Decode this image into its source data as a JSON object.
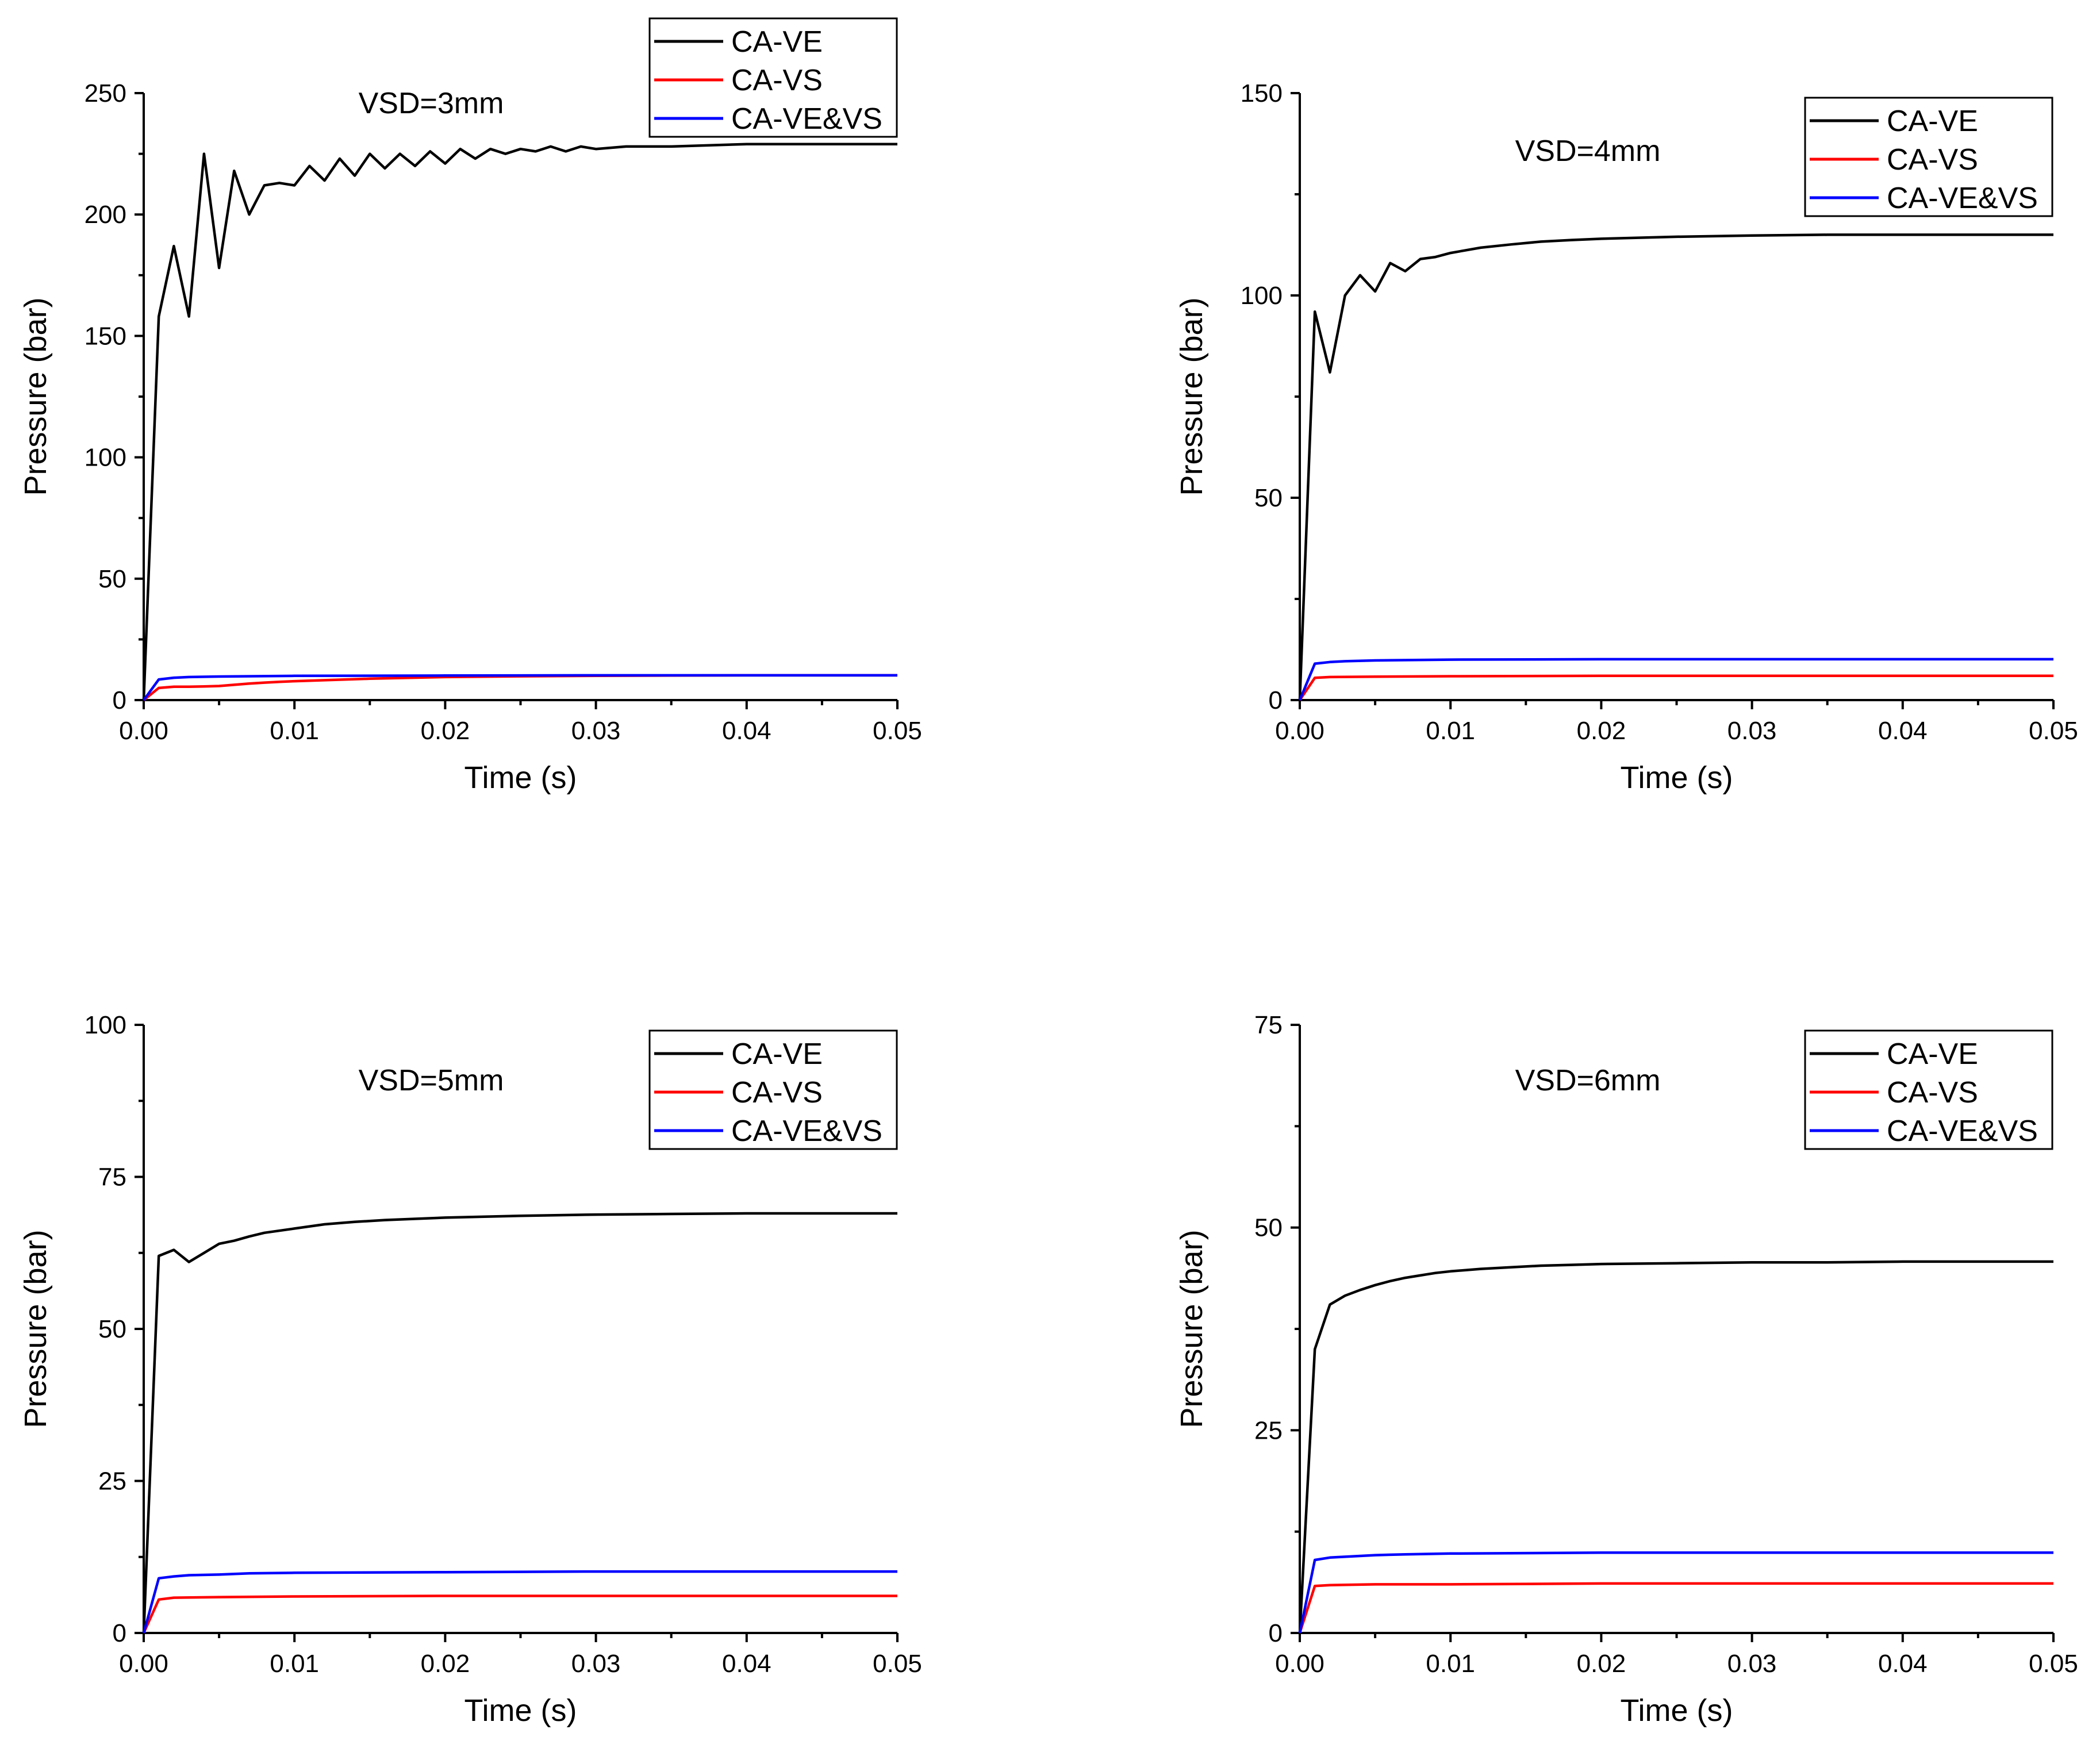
{
  "chart_data": [
    {
      "type": "line",
      "annotation": "VSD=3mm",
      "xlabel": "Time (s)",
      "ylabel": "Pressure (bar)",
      "xlim": [
        0,
        0.05
      ],
      "ylim": [
        0,
        250
      ],
      "xticks": [
        "0.00",
        "0.01",
        "0.02",
        "0.03",
        "0.04",
        "0.05"
      ],
      "yticks": [
        "0",
        "50",
        "100",
        "150",
        "200",
        "250"
      ],
      "legend_position": "top-right",
      "series": [
        {
          "name": "CA-VE",
          "color": "#000000",
          "x": [
            0,
            0.001,
            0.002,
            0.003,
            0.004,
            0.005,
            0.006,
            0.007,
            0.008,
            0.009,
            0.01,
            0.011,
            0.012,
            0.013,
            0.014,
            0.015,
            0.016,
            0.017,
            0.018,
            0.019,
            0.02,
            0.021,
            0.022,
            0.023,
            0.024,
            0.025,
            0.026,
            0.027,
            0.028,
            0.029,
            0.03,
            0.032,
            0.035,
            0.04,
            0.045,
            0.05
          ],
          "y": [
            0,
            158,
            187,
            158,
            225,
            178,
            218,
            200,
            212,
            213,
            212,
            220,
            214,
            223,
            216,
            225,
            219,
            225,
            220,
            226,
            221,
            227,
            223,
            227,
            225,
            227,
            226,
            228,
            226,
            228,
            227,
            228,
            228,
            229,
            229,
            229
          ]
        },
        {
          "name": "CA-VS",
          "color": "#ff0000",
          "x": [
            0,
            0.001,
            0.002,
            0.003,
            0.004,
            0.005,
            0.006,
            0.007,
            0.008,
            0.009,
            0.01,
            0.012,
            0.015,
            0.02,
            0.025,
            0.03,
            0.035,
            0.04,
            0.045,
            0.05
          ],
          "y": [
            0,
            5,
            5.5,
            5.5,
            5.6,
            5.8,
            6.3,
            6.8,
            7.2,
            7.5,
            7.8,
            8.2,
            8.8,
            9.5,
            9.8,
            10,
            10.1,
            10.2,
            10.2,
            10.2
          ]
        },
        {
          "name": "CA-VE&VS",
          "color": "#0000ff",
          "x": [
            0,
            0.001,
            0.002,
            0.003,
            0.005,
            0.01,
            0.02,
            0.03,
            0.04,
            0.05
          ],
          "y": [
            0,
            8.5,
            9.2,
            9.5,
            9.7,
            10,
            10.1,
            10.2,
            10.2,
            10.2
          ]
        }
      ]
    },
    {
      "type": "line",
      "annotation": "VSD=4mm",
      "xlabel": "Time (s)",
      "ylabel": "Pressure (bar)",
      "xlim": [
        0,
        0.05
      ],
      "ylim": [
        0,
        150
      ],
      "xticks": [
        "0.00",
        "0.01",
        "0.02",
        "0.03",
        "0.04",
        "0.05"
      ],
      "yticks": [
        "0",
        "50",
        "100",
        "150"
      ],
      "legend_position": "top-right",
      "series": [
        {
          "name": "CA-VE",
          "color": "#000000",
          "x": [
            0,
            0.001,
            0.002,
            0.003,
            0.004,
            0.005,
            0.006,
            0.007,
            0.008,
            0.009,
            0.01,
            0.012,
            0.014,
            0.016,
            0.018,
            0.02,
            0.025,
            0.03,
            0.035,
            0.04,
            0.045,
            0.05
          ],
          "y": [
            0,
            96,
            81,
            100,
            105,
            101,
            108,
            106,
            109,
            109.5,
            110.5,
            111.8,
            112.6,
            113.3,
            113.7,
            114,
            114.5,
            114.8,
            115,
            115,
            115,
            115
          ]
        },
        {
          "name": "CA-VS",
          "color": "#ff0000",
          "x": [
            0,
            0.001,
            0.002,
            0.005,
            0.01,
            0.02,
            0.03,
            0.04,
            0.05
          ],
          "y": [
            0,
            5.5,
            5.7,
            5.8,
            5.9,
            6,
            6,
            6,
            6
          ]
        },
        {
          "name": "CA-VE&VS",
          "color": "#0000ff",
          "x": [
            0,
            0.001,
            0.002,
            0.003,
            0.005,
            0.01,
            0.02,
            0.03,
            0.04,
            0.05
          ],
          "y": [
            0,
            9,
            9.4,
            9.6,
            9.8,
            10,
            10.1,
            10.1,
            10.1,
            10.1
          ]
        }
      ]
    },
    {
      "type": "line",
      "annotation": "VSD=5mm",
      "xlabel": "Time (s)",
      "ylabel": "Pressure (bar)",
      "xlim": [
        0,
        0.05
      ],
      "ylim": [
        0,
        100
      ],
      "xticks": [
        "0.00",
        "0.01",
        "0.02",
        "0.03",
        "0.04",
        "0.05"
      ],
      "yticks": [
        "0",
        "25",
        "50",
        "75",
        "100"
      ],
      "legend_position": "top-right",
      "series": [
        {
          "name": "CA-VE",
          "color": "#000000",
          "x": [
            0,
            0.001,
            0.002,
            0.003,
            0.004,
            0.005,
            0.006,
            0.007,
            0.008,
            0.01,
            0.012,
            0.014,
            0.016,
            0.018,
            0.02,
            0.025,
            0.03,
            0.035,
            0.04,
            0.045,
            0.05
          ],
          "y": [
            0,
            62,
            63,
            61,
            62.5,
            64,
            64.5,
            65.2,
            65.8,
            66.5,
            67.2,
            67.6,
            67.9,
            68.1,
            68.3,
            68.6,
            68.8,
            68.9,
            69,
            69,
            69
          ]
        },
        {
          "name": "CA-VS",
          "color": "#ff0000",
          "x": [
            0,
            0.001,
            0.002,
            0.005,
            0.01,
            0.02,
            0.03,
            0.04,
            0.05
          ],
          "y": [
            0,
            5.5,
            5.8,
            5.9,
            6,
            6.1,
            6.1,
            6.1,
            6.1
          ]
        },
        {
          "name": "CA-VE&VS",
          "color": "#0000ff",
          "x": [
            0,
            0.001,
            0.002,
            0.003,
            0.005,
            0.007,
            0.01,
            0.02,
            0.03,
            0.04,
            0.05
          ],
          "y": [
            0,
            9,
            9.3,
            9.5,
            9.6,
            9.8,
            9.9,
            10,
            10.1,
            10.1,
            10.1
          ]
        }
      ]
    },
    {
      "type": "line",
      "annotation": "VSD=6mm",
      "xlabel": "Time (s)",
      "ylabel": "Pressure (bar)",
      "xlim": [
        0,
        0.05
      ],
      "ylim": [
        0,
        75
      ],
      "xticks": [
        "0.00",
        "0.01",
        "0.02",
        "0.03",
        "0.04",
        "0.05"
      ],
      "yticks": [
        "0",
        "25",
        "50",
        "75"
      ],
      "legend_position": "top-right",
      "series": [
        {
          "name": "CA-VE",
          "color": "#000000",
          "x": [
            0,
            0.001,
            0.002,
            0.003,
            0.004,
            0.005,
            0.006,
            0.007,
            0.008,
            0.009,
            0.01,
            0.012,
            0.014,
            0.016,
            0.018,
            0.02,
            0.025,
            0.03,
            0.035,
            0.04,
            0.045,
            0.05
          ],
          "y": [
            0,
            35,
            40.5,
            41.6,
            42.3,
            42.9,
            43.4,
            43.8,
            44.1,
            44.4,
            44.6,
            44.9,
            45.1,
            45.3,
            45.4,
            45.5,
            45.6,
            45.7,
            45.7,
            45.8,
            45.8,
            45.8
          ]
        },
        {
          "name": "CA-VS",
          "color": "#ff0000",
          "x": [
            0,
            0.001,
            0.002,
            0.005,
            0.01,
            0.02,
            0.03,
            0.04,
            0.05
          ],
          "y": [
            0,
            5.8,
            5.9,
            6,
            6,
            6.1,
            6.1,
            6.1,
            6.1
          ]
        },
        {
          "name": "CA-VE&VS",
          "color": "#0000ff",
          "x": [
            0,
            0.001,
            0.002,
            0.003,
            0.005,
            0.007,
            0.01,
            0.02,
            0.03,
            0.04,
            0.05
          ],
          "y": [
            0,
            9,
            9.3,
            9.4,
            9.6,
            9.7,
            9.8,
            9.9,
            9.9,
            9.9,
            9.9
          ]
        }
      ]
    }
  ]
}
